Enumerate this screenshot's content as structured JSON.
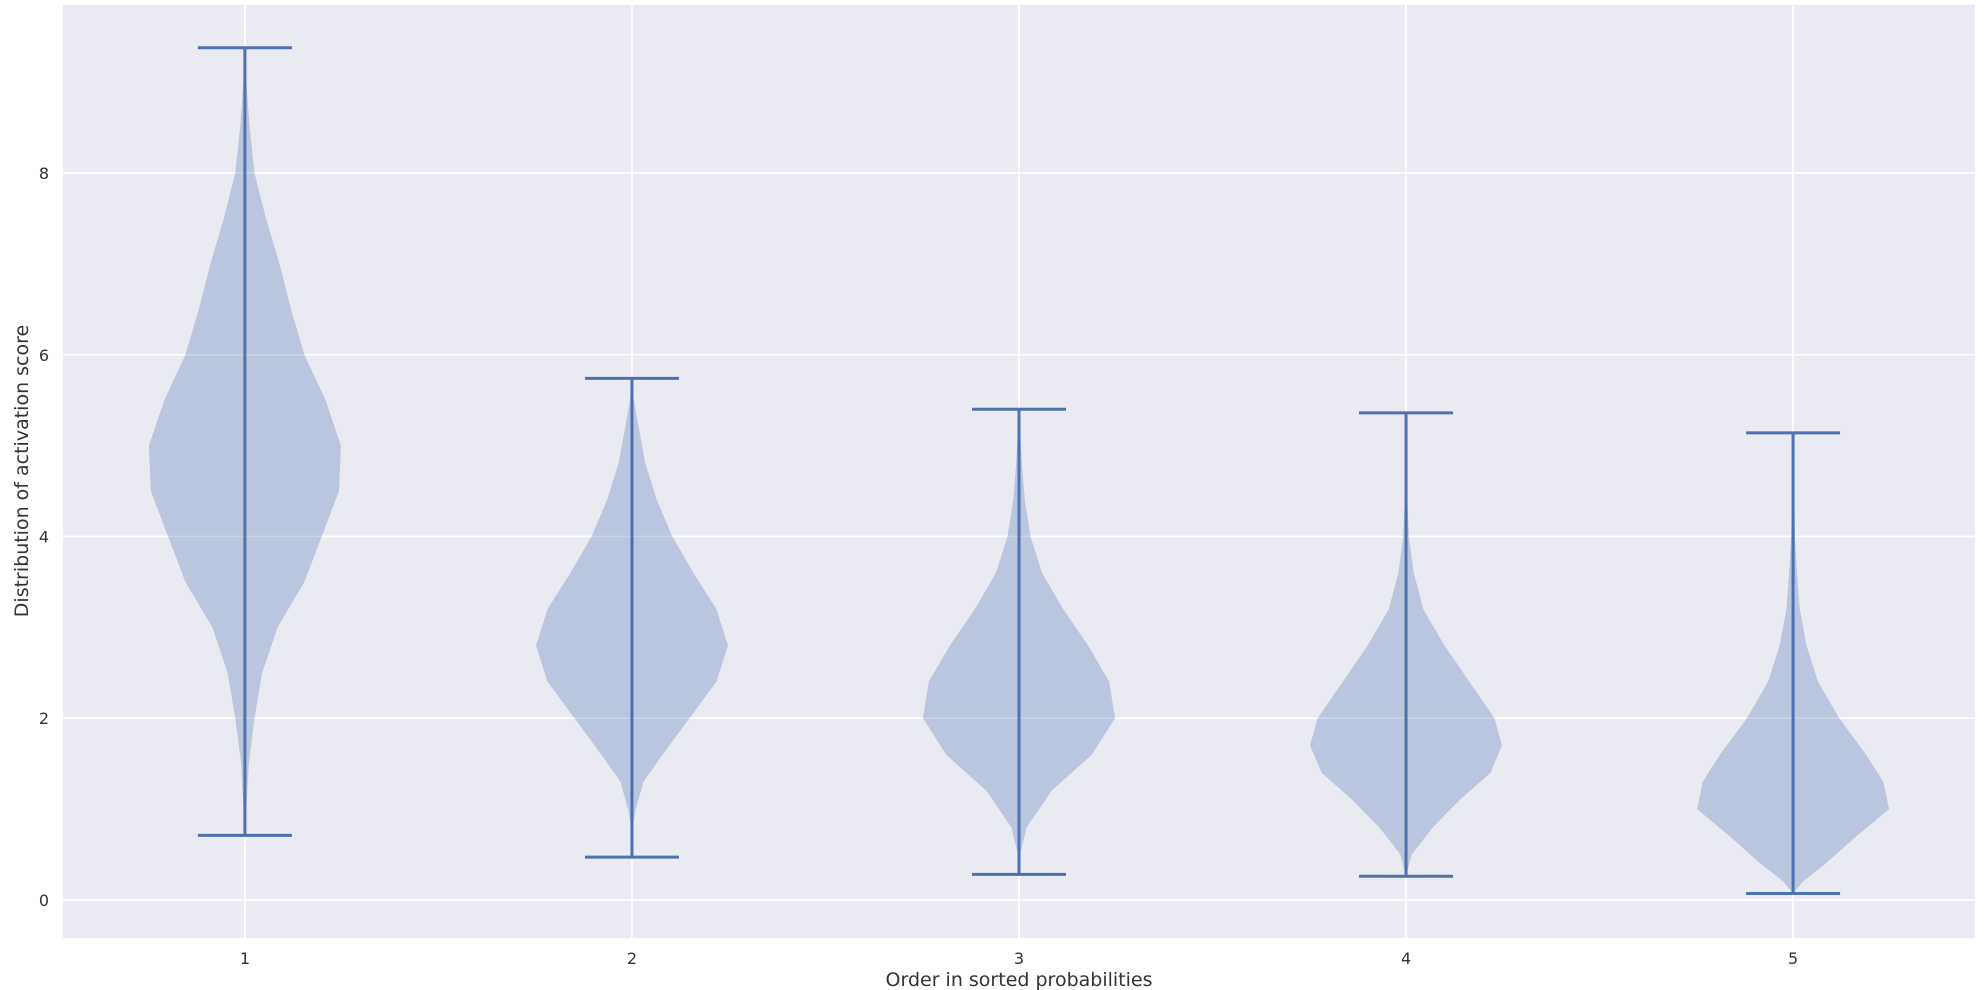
{
  "chart_data": {
    "type": "violin",
    "xlabel": "Order in sorted probabilities",
    "ylabel": "Distribution of activation score",
    "xlim": [
      0.53,
      5.47
    ],
    "ylim": [
      -0.42,
      9.85
    ],
    "grid": true,
    "categories": [
      "1",
      "2",
      "3",
      "4",
      "5"
    ],
    "y_ticks": [
      0,
      2,
      4,
      6,
      8
    ],
    "colors": {
      "background": "#eaeaf2",
      "grid": "#ffffff",
      "violin": "#4c72b0"
    },
    "violins": [
      {
        "position": 1,
        "min": 0.71,
        "max": 9.38,
        "density": [
          [
            0.71,
            0.0
          ],
          [
            1.5,
            0.02
          ],
          [
            2.0,
            0.05
          ],
          [
            2.5,
            0.09
          ],
          [
            3.0,
            0.17
          ],
          [
            3.5,
            0.31
          ],
          [
            4.0,
            0.4
          ],
          [
            4.5,
            0.49
          ],
          [
            5.0,
            0.5
          ],
          [
            5.5,
            0.42
          ],
          [
            6.0,
            0.31
          ],
          [
            6.5,
            0.24
          ],
          [
            7.0,
            0.18
          ],
          [
            7.5,
            0.11
          ],
          [
            8.0,
            0.05
          ],
          [
            8.5,
            0.025
          ],
          [
            9.0,
            0.008
          ],
          [
            9.38,
            0.0
          ]
        ]
      },
      {
        "position": 2,
        "min": 0.47,
        "max": 5.74,
        "density": [
          [
            0.47,
            0.0
          ],
          [
            0.8,
            0.005
          ],
          [
            1.0,
            0.02
          ],
          [
            1.3,
            0.06
          ],
          [
            1.6,
            0.16
          ],
          [
            2.0,
            0.3
          ],
          [
            2.4,
            0.44
          ],
          [
            2.8,
            0.5
          ],
          [
            3.2,
            0.44
          ],
          [
            3.6,
            0.32
          ],
          [
            4.0,
            0.21
          ],
          [
            4.4,
            0.13
          ],
          [
            4.8,
            0.07
          ],
          [
            5.2,
            0.035
          ],
          [
            5.5,
            0.01
          ],
          [
            5.74,
            0.0
          ]
        ]
      },
      {
        "position": 3,
        "min": 0.28,
        "max": 5.4,
        "density": [
          [
            0.28,
            0.0
          ],
          [
            0.5,
            0.005
          ],
          [
            0.8,
            0.04
          ],
          [
            1.2,
            0.17
          ],
          [
            1.6,
            0.38
          ],
          [
            2.0,
            0.5
          ],
          [
            2.4,
            0.47
          ],
          [
            2.8,
            0.36
          ],
          [
            3.2,
            0.23
          ],
          [
            3.6,
            0.12
          ],
          [
            4.0,
            0.06
          ],
          [
            4.4,
            0.03
          ],
          [
            4.8,
            0.015
          ],
          [
            5.2,
            0.005
          ],
          [
            5.4,
            0.0
          ]
        ]
      },
      {
        "position": 4,
        "min": 0.26,
        "max": 5.36,
        "density": [
          [
            0.26,
            0.0
          ],
          [
            0.5,
            0.03
          ],
          [
            0.8,
            0.14
          ],
          [
            1.1,
            0.28
          ],
          [
            1.4,
            0.44
          ],
          [
            1.7,
            0.5
          ],
          [
            2.0,
            0.46
          ],
          [
            2.4,
            0.33
          ],
          [
            2.8,
            0.2
          ],
          [
            3.2,
            0.09
          ],
          [
            3.6,
            0.04
          ],
          [
            4.0,
            0.015
          ],
          [
            4.5,
            0.005
          ],
          [
            5.0,
            0.002
          ],
          [
            5.36,
            0.0
          ]
        ]
      },
      {
        "position": 5,
        "min": 0.07,
        "max": 5.14,
        "density": [
          [
            0.07,
            0.0
          ],
          [
            0.2,
            0.05
          ],
          [
            0.4,
            0.17
          ],
          [
            0.7,
            0.33
          ],
          [
            1.0,
            0.5
          ],
          [
            1.3,
            0.47
          ],
          [
            1.6,
            0.38
          ],
          [
            2.0,
            0.24
          ],
          [
            2.4,
            0.13
          ],
          [
            2.8,
            0.07
          ],
          [
            3.2,
            0.035
          ],
          [
            3.6,
            0.02
          ],
          [
            4.0,
            0.01
          ],
          [
            4.5,
            0.005
          ],
          [
            5.14,
            0.0
          ]
        ]
      }
    ]
  }
}
